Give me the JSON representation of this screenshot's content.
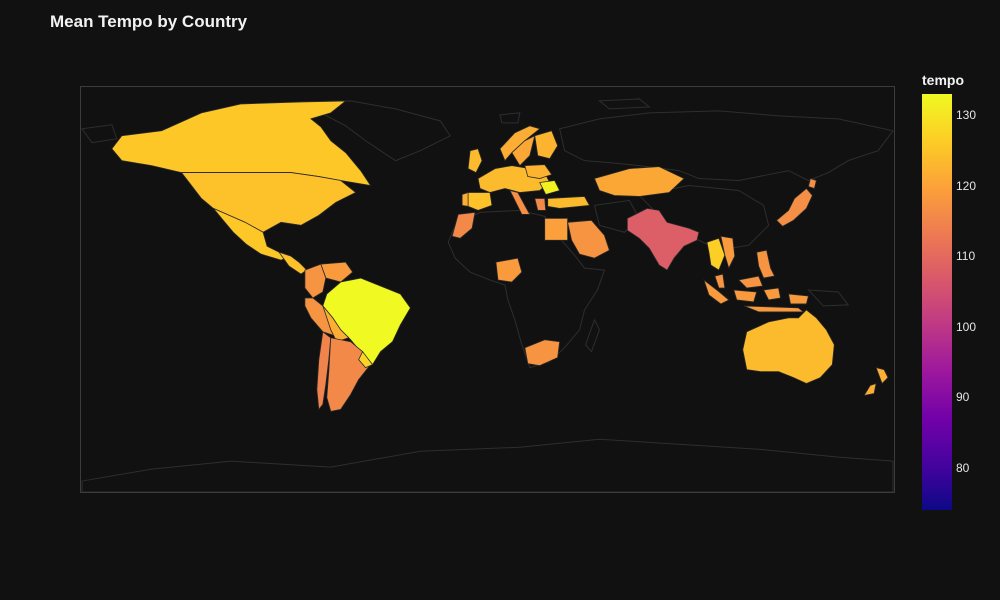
{
  "title": "Mean Tempo by Country",
  "colorbar": {
    "title": "tempo",
    "min": 74,
    "max": 133,
    "ticks": [
      "80",
      "90",
      "100",
      "110",
      "120",
      "130"
    ]
  },
  "colors": {
    "background": "#111111",
    "land_no_data": "#111111",
    "border": "#2e2e2e"
  },
  "map": {
    "projection": "equirectangular",
    "regions": [
      {
        "name": "Canada",
        "value": 126
      },
      {
        "name": "United States",
        "value": 125
      },
      {
        "name": "Mexico",
        "value": 126
      },
      {
        "name": "Central America",
        "value": 125
      },
      {
        "name": "Colombia",
        "value": 118
      },
      {
        "name": "Venezuela",
        "value": 119
      },
      {
        "name": "Peru",
        "value": 118
      },
      {
        "name": "Bolivia",
        "value": 122
      },
      {
        "name": "Brazil",
        "value": 133
      },
      {
        "name": "Chile",
        "value": 115
      },
      {
        "name": "Argentina",
        "value": 116
      },
      {
        "name": "Uruguay",
        "value": 128
      },
      {
        "name": "United Kingdom",
        "value": 124
      },
      {
        "name": "Norway",
        "value": 122
      },
      {
        "name": "Sweden",
        "value": 121
      },
      {
        "name": "Finland",
        "value": 123
      },
      {
        "name": "Western Europe",
        "value": 124
      },
      {
        "name": "Spain",
        "value": 125
      },
      {
        "name": "Portugal",
        "value": 122
      },
      {
        "name": "Italy",
        "value": 117
      },
      {
        "name": "Poland",
        "value": 123
      },
      {
        "name": "Romania",
        "value": 132
      },
      {
        "name": "Greece",
        "value": 116
      },
      {
        "name": "Turkey",
        "value": 124
      },
      {
        "name": "Morocco",
        "value": 116
      },
      {
        "name": "Egypt",
        "value": 120
      },
      {
        "name": "Saudi Arabia",
        "value": 118
      },
      {
        "name": "Nigeria",
        "value": 119
      },
      {
        "name": "South Africa",
        "value": 118
      },
      {
        "name": "Kazakhstan",
        "value": 121
      },
      {
        "name": "India",
        "value": 108
      },
      {
        "name": "Thailand",
        "value": 127
      },
      {
        "name": "Vietnam",
        "value": 119
      },
      {
        "name": "Malaysia",
        "value": 118
      },
      {
        "name": "Indonesia",
        "value": 119
      },
      {
        "name": "Philippines",
        "value": 118
      },
      {
        "name": "Japan",
        "value": 117
      },
      {
        "name": "Australia",
        "value": 124
      },
      {
        "name": "New Zealand",
        "value": 122
      }
    ]
  }
}
